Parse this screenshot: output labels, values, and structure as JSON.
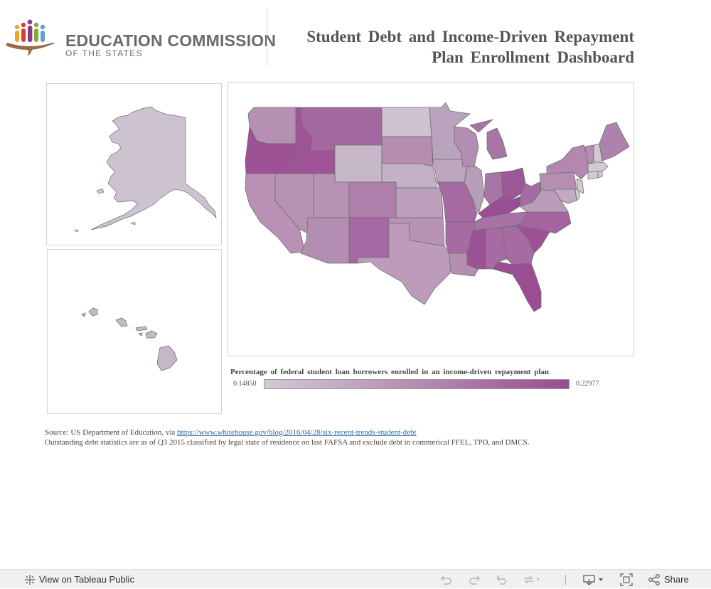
{
  "header": {
    "logo_line1": "EDUCATION COMMISSION",
    "logo_line2": "OF THE STATES",
    "title_line1": "Student Debt and Income-Driven Repayment",
    "title_line2": "Plan Enrollment Dashboard"
  },
  "colors": {
    "figure_colors": [
      "#f2a324",
      "#d7402b",
      "#8a3e82",
      "#88a83b",
      "#5ba3c9",
      "#c9962c"
    ],
    "arc": "#9b6a49",
    "map_low": "#d2cad3",
    "map_high": "#9a4d92",
    "border": "#6f6f6f"
  },
  "legend": {
    "title": "Percentage of federal student loan borrowers enrolled in an income-driven repayment plan",
    "min": "0.14850",
    "max": "0.22977"
  },
  "source": {
    "prefix": "Source: US Department of Education, via ",
    "link": "https://www.whitehouse.gov/blog/2016/04/28/six-recent-trends-student-debt",
    "note": "Outstanding debt statistics are as of Q3 2015 classified by legal state of residence on last FAFSA and exclude debt in commerical FFEL, TPD, and DMCS."
  },
  "toolbar": {
    "view_label": "View on Tableau Public",
    "share_label": "Share",
    "icons": [
      "tableau-icon",
      "undo-icon",
      "redo-icon",
      "revert-icon",
      "refresh-icon",
      "download-icon",
      "fullscreen-icon",
      "share-icon"
    ]
  }
}
